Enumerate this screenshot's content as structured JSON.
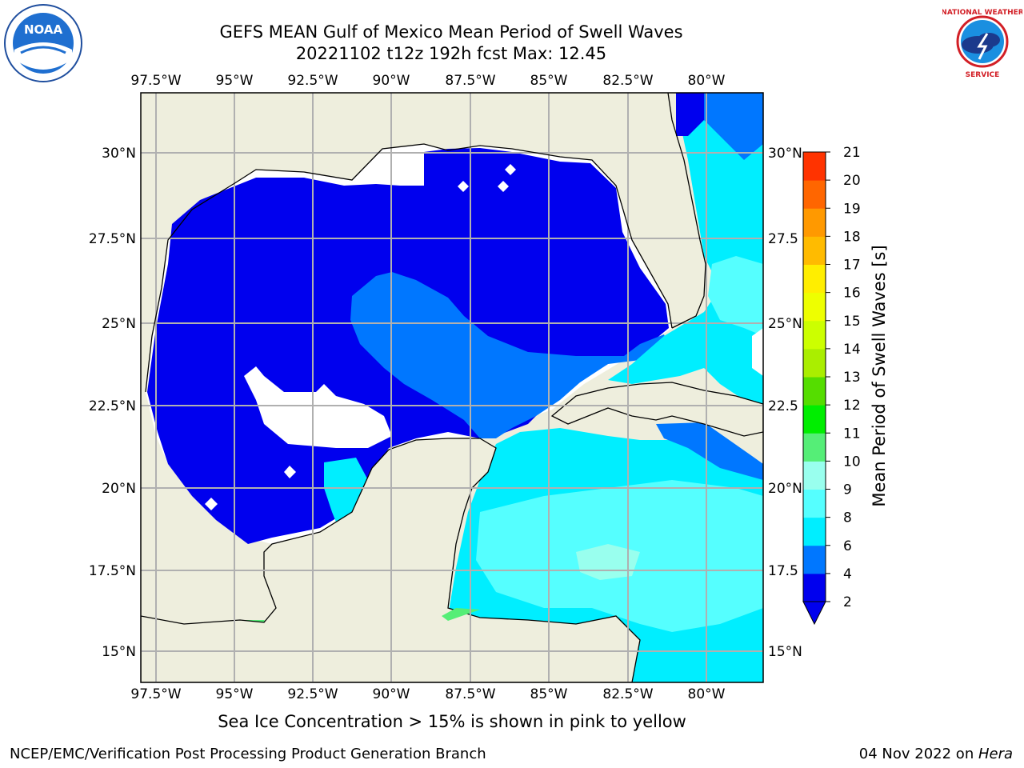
{
  "header": {
    "title_line1": "GEFS MEAN Gulf of Mexico Mean Period of Swell Waves",
    "title_line2": "20221102 t12z 192h fcst   Max: 12.45"
  },
  "logos": {
    "noara_label": "NOAA",
    "noaa_ring_text": "NATIONAL OCEANIC AND ATMOSPHERIC ADMINISTRATION · U.S. DEPARTMENT OF COMMERCE",
    "nws_ring_text": "NATIONAL WEATHER SERVICE"
  },
  "map": {
    "lon_labels": [
      "97.5°W",
      "95°W",
      "92.5°W",
      "90°W",
      "87.5°W",
      "85°W",
      "82.5°W",
      "80°W"
    ],
    "lat_labels_left": [
      "30°N",
      "27.5°N",
      "25°N",
      "22.5°N",
      "20°N",
      "17.5°N",
      "15°N"
    ],
    "lat_labels_right": [
      "30°N",
      "27.5",
      "25°N",
      "22.5",
      "20°N",
      "17.5",
      "15°N"
    ],
    "colors": {
      "land": "#eeeedd",
      "grid": "#b0b0b0",
      "period_2_4": "#0000ee",
      "period_4_6": "#0077ff",
      "period_6_8": "#00eeff",
      "period_8_9": "#55ffff",
      "period_9_10": "#99ffee",
      "period_10_11": "#55ee77",
      "period_11_12": "#00ee00"
    }
  },
  "colorbar": {
    "label": "Mean Period of Swell Waves [s]",
    "ticks": [
      "2",
      "4",
      "6",
      "8",
      "9",
      "10",
      "11",
      "12",
      "13",
      "14",
      "15",
      "16",
      "17",
      "18",
      "19",
      "20",
      "21"
    ],
    "colors": [
      "#0000ee",
      "#0077ff",
      "#00eeff",
      "#55ffff",
      "#99ffee",
      "#55ee77",
      "#00ee00",
      "#55dd00",
      "#aaee00",
      "#ccff00",
      "#eeff00",
      "#ffee00",
      "#ffbb00",
      "#ff9900",
      "#ff6600",
      "#ff3300",
      "#ff0000"
    ],
    "extend_color": "#0000ee"
  },
  "caption": "Sea Ice Concentration > 15% is shown in pink to yellow",
  "footer": {
    "left": "NCEP/EMC/Verification Post Processing Product Generation Branch",
    "right_date": "04 Nov 2022 on ",
    "right_host": "Hera"
  }
}
